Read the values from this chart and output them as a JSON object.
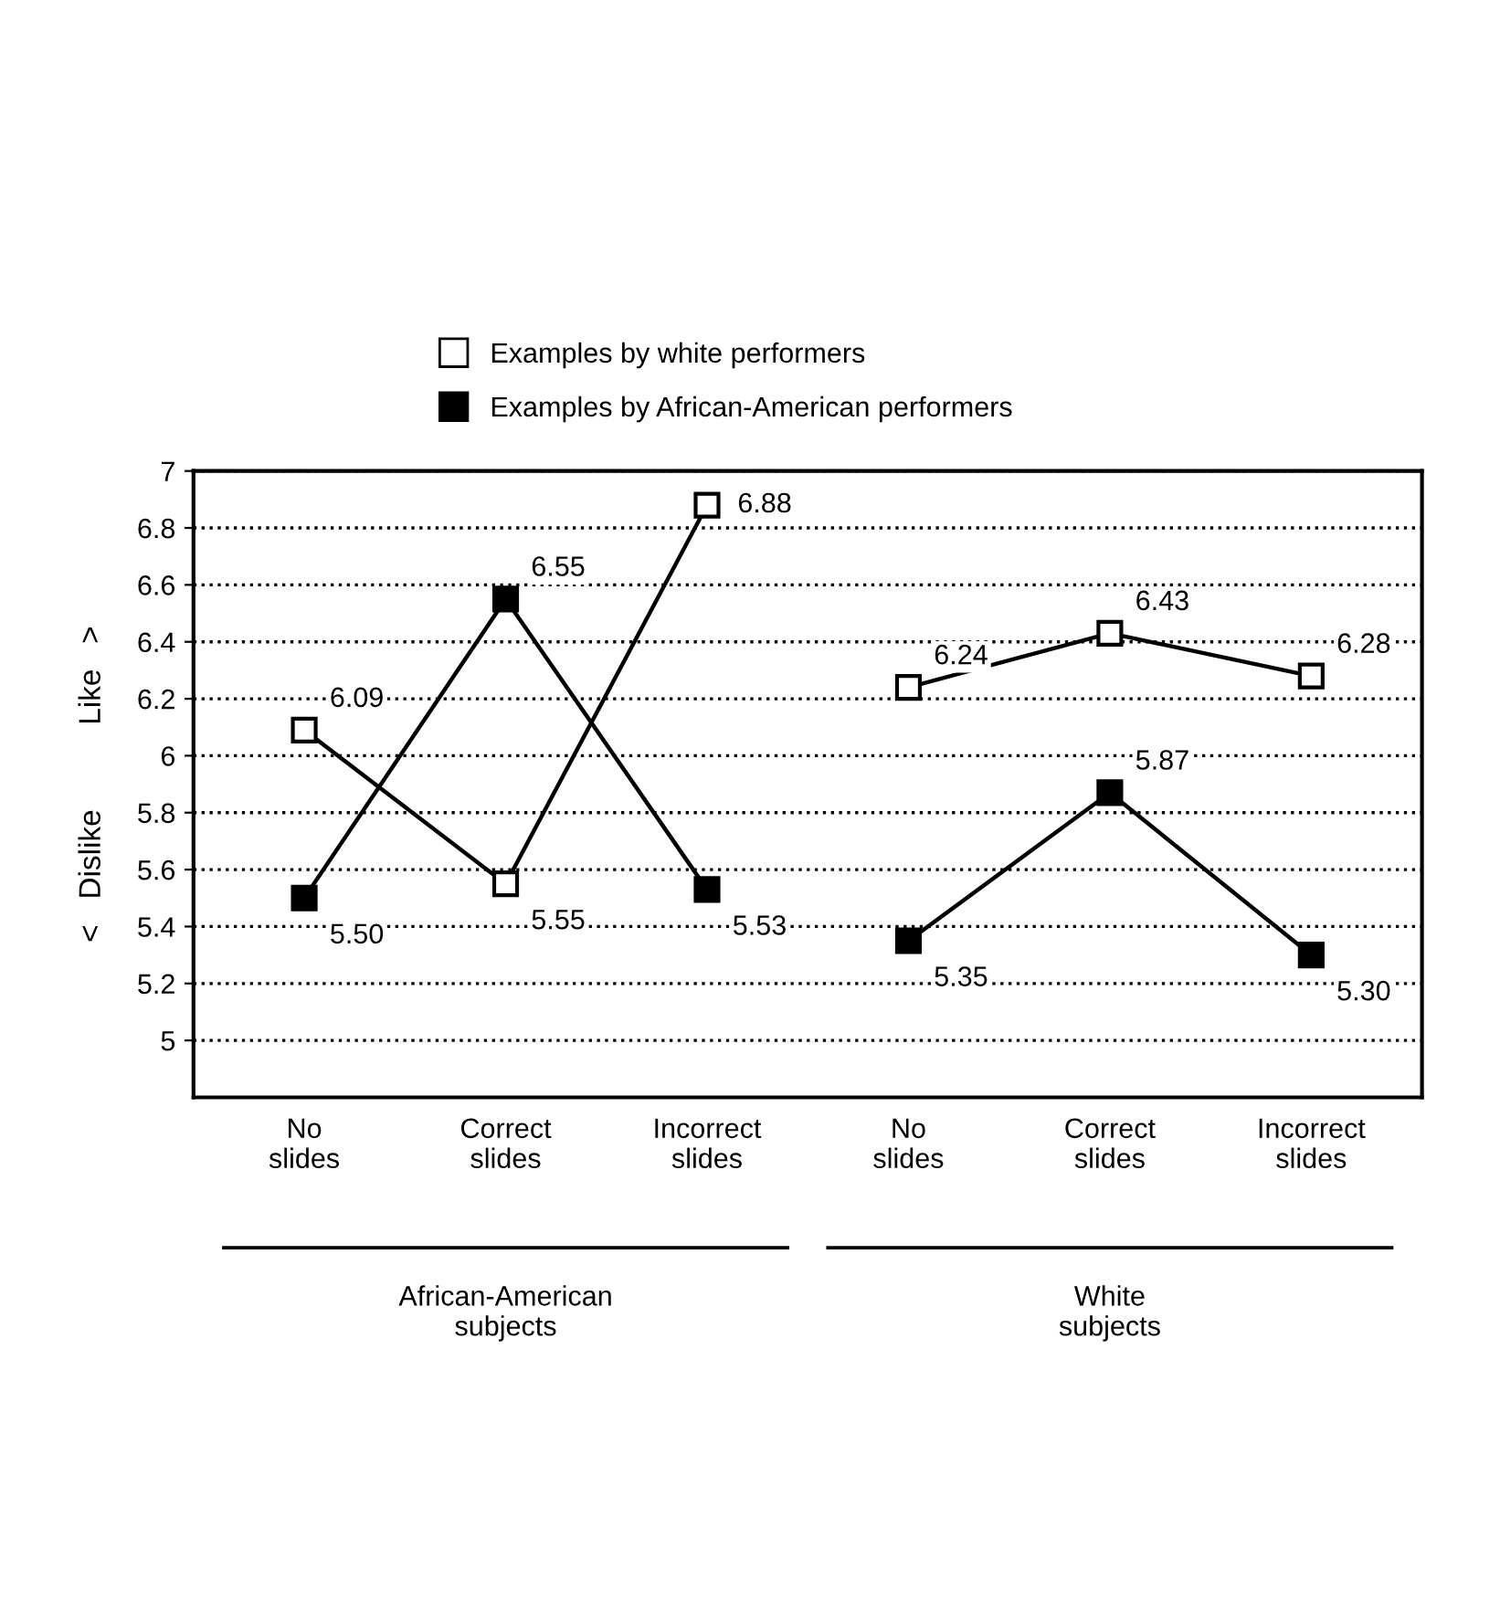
{
  "chart_data": {
    "type": "line",
    "ylabel": "<   Dislike          Like   >",
    "categories": [
      "No\nslides",
      "Correct\nslides",
      "Incorrect\nslides",
      "No\nslides",
      "Correct\nslides",
      "Incorrect\nslides"
    ],
    "series": [
      {
        "name": "Examples by white performers",
        "color": "#ffffff",
        "values": [
          6.09,
          5.55,
          6.88,
          null,
          null,
          null
        ],
        "value_labels": [
          "6.09",
          "5.55",
          "6.88",
          null,
          null,
          null
        ]
      },
      {
        "name": "Examples by African-American performers",
        "color": "#000000",
        "values": [
          5.5,
          6.55,
          5.53,
          null,
          null,
          null
        ],
        "value_labels": [
          "5.50",
          "6.55",
          "5.53",
          null,
          null,
          null
        ]
      },
      {
        "color": "#ffffff",
        "values": [
          null,
          null,
          null,
          6.24,
          6.43,
          6.28
        ],
        "value_labels": [
          null,
          null,
          null,
          "6.24",
          "6.43",
          "6.28"
        ]
      },
      {
        "color": "#000000",
        "values": [
          null,
          null,
          null,
          5.35,
          5.87,
          5.3
        ],
        "value_labels": [
          null,
          null,
          null,
          "5.35",
          "5.87",
          "5.30"
        ]
      }
    ],
    "annotations": [
      "African-American\nsubjects",
      "White\nsubjects"
    ],
    "ylim": [
      4.8,
      7
    ],
    "yticks": [
      5,
      5.2,
      5.4,
      5.6,
      5.8,
      6,
      6.2,
      6.4,
      6.6,
      6.8,
      7
    ],
    "grid": "y",
    "line_style": "solid",
    "marker": "square",
    "legend": "top"
  }
}
